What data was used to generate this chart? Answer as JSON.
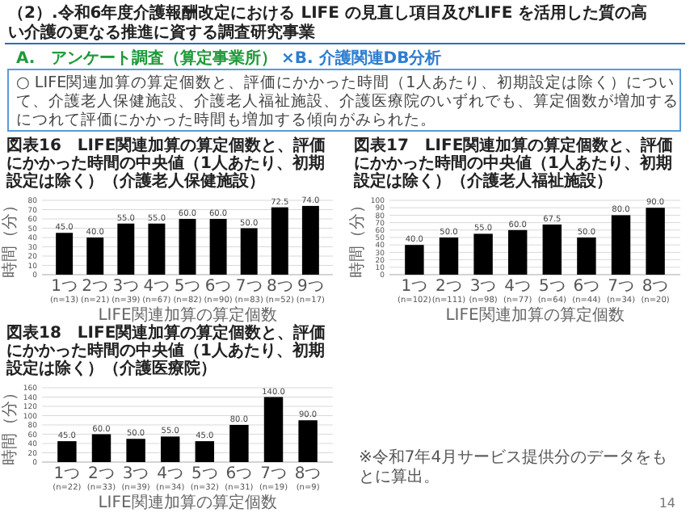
{
  "chart_data": [
    {
      "type": "other",
      "title": "（2）.令和6年度介護報酬改定における LIFE の見直し項目及びLIFE を活用した質の高い介護の更なる推進に資する調査研究事業",
      "annotations": [
        "A.　アンケート調査（算定事業所）",
        "×B. 介護関連DB分析",
        "○ LIFE関連加算の算定個数と、評価にかかった時間（1人あたり、初期設定は除く）について、介護老人保健施設、介護老人福祉施設、介護医療院のいずれでも、算定個数が増加するにつれて評価にかかった時間も増加する傾向がみられた。",
        "※令和7年4月サービス提供分のデータをもとに算出。",
        "14"
      ]
    },
    {
      "type": "bar",
      "title": "図表16　LIFE関連加算の算定個数と、評価にかかった時間の中央値（1人あたり、初期設定は除く）（介護老人保健施設）",
      "xlabel": "LIFE関連加算の算定個数",
      "ylabel": "時間（分）",
      "categories": [
        "1つ\n(n=13)",
        "2つ\n(n=21)",
        "3つ\n(n=39)",
        "4つ\n(n=67)",
        "5つ\n(n=82)",
        "6つ\n(n=90)",
        "7つ\n(n=83)",
        "8つ\n(n=52)",
        "9つ\n(n=17)"
      ],
      "values": [
        45,
        40,
        55,
        55,
        60,
        60,
        50,
        72.5,
        74
      ],
      "value_labels": [
        "45.0",
        "40.0",
        "55.0",
        "55.0",
        "60.0",
        "60.0",
        "50.0",
        "72.5",
        "74.0"
      ],
      "color": "#000000",
      "ylim": [
        0,
        80
      ],
      "yticks": [
        0,
        10,
        20,
        30,
        40,
        50,
        60,
        70,
        80
      ],
      "grid": "y"
    },
    {
      "type": "bar",
      "title": "図表17　LIFE関連加算の算定個数と、評価にかかった時間の中央値（1人あたり、初期設定は除く）（介護老人福祉施設）",
      "xlabel": "LIFE関連加算の算定個数",
      "ylabel": "時間（分）",
      "categories": [
        "1つ\n(n=102)",
        "2つ\n(n=111)",
        "3つ\n(n=98)",
        "4つ\n(n=77)",
        "5つ\n(n=64)",
        "6つ\n(n=44)",
        "7つ\n(n=34)",
        "8つ\n(n=20)"
      ],
      "values": [
        40,
        50,
        55,
        60,
        67.5,
        50,
        80,
        90
      ],
      "value_labels": [
        "40.0",
        "50.0",
        "55.0",
        "60.0",
        "67.5",
        "50.0",
        "80.0",
        "90.0"
      ],
      "color": "#000000",
      "ylim": [
        0,
        100
      ],
      "yticks": [
        0,
        10,
        20,
        30,
        40,
        50,
        60,
        70,
        80,
        90,
        100
      ],
      "grid": "y"
    },
    {
      "type": "bar",
      "title": "図表18　LIFE関連加算の算定個数と、評価にかかった時間の中央値（1人あたり、初期設定は除く）（介護医療院）",
      "xlabel": "LIFE関連加算の算定個数",
      "ylabel": "時間（分）",
      "categories": [
        "1つ\n(n=22)",
        "2つ\n(n=33)",
        "3つ\n(n=39)",
        "4つ\n(n=34)",
        "5つ\n(n=32)",
        "6つ\n(n=31)",
        "7つ\n(n=19)",
        "8つ\n(n=9)"
      ],
      "values": [
        45,
        60,
        50,
        55,
        45,
        80,
        140,
        90
      ],
      "value_labels": [
        "45.0",
        "60.0",
        "50.0",
        "55.0",
        "45.0",
        "80.0",
        "140.0",
        "90.0"
      ],
      "color": "#000000",
      "ylim": [
        0,
        160
      ],
      "yticks": [
        0,
        20,
        40,
        60,
        80,
        100,
        120,
        140,
        160
      ],
      "grid": "y"
    }
  ]
}
